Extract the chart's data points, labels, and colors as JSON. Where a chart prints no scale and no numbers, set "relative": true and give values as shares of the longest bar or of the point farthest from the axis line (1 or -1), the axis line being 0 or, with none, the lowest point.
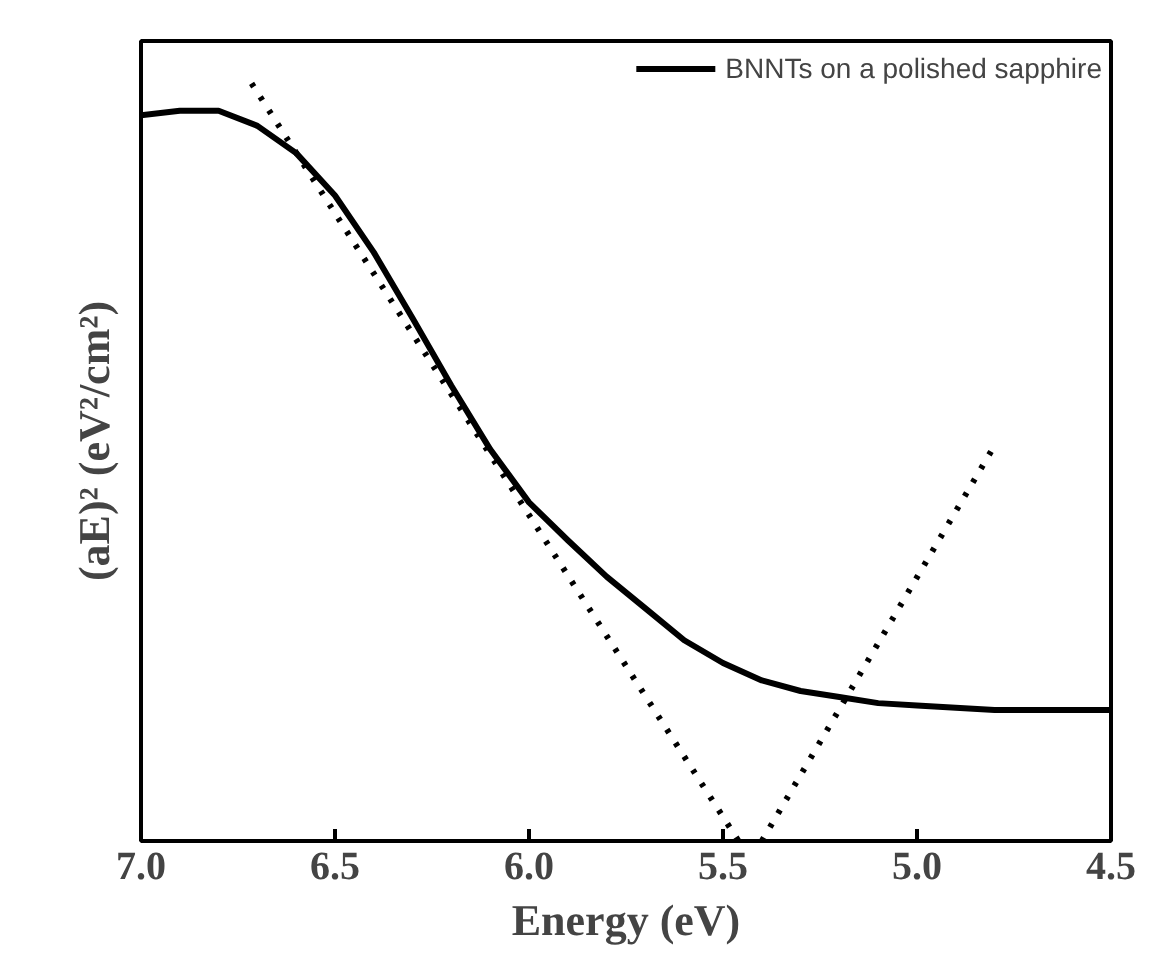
{
  "chart_data": {
    "type": "line",
    "relative": true,
    "xlabel": "Energy (eV)",
    "ylabel": "(aE)² (eV²/cm²)",
    "xlim": [
      7.0,
      4.5
    ],
    "xticks": [
      {
        "value": 7.0,
        "label": "7.0"
      },
      {
        "value": 6.5,
        "label": "6.5"
      },
      {
        "value": 6.0,
        "label": "6.0"
      },
      {
        "value": 5.5,
        "label": "5.5"
      },
      {
        "value": 5.0,
        "label": "5.0"
      },
      {
        "value": 4.5,
        "label": "4.5"
      }
    ],
    "grid": false,
    "legend": "top right",
    "tick_labels": "x",
    "series": [
      {
        "name": "BNNTs on a polished sapphire",
        "color": "#000000",
        "line_style": "solid",
        "x": [
          7.0,
          6.9,
          6.8,
          6.7,
          6.6,
          6.5,
          6.4,
          6.3,
          6.2,
          6.1,
          6.0,
          5.9,
          5.8,
          5.7,
          5.6,
          5.5,
          5.4,
          5.3,
          5.2,
          5.1,
          5.0,
          4.8,
          4.5
        ],
        "values": [
          0.958,
          0.964,
          0.964,
          0.944,
          0.908,
          0.852,
          0.777,
          0.69,
          0.601,
          0.517,
          0.447,
          0.397,
          0.349,
          0.307,
          0.265,
          0.235,
          0.212,
          0.198,
          0.19,
          0.182,
          0.179,
          0.173,
          0.173
        ]
      },
      {
        "color": "#000000",
        "line_style": "dotted",
        "x": [
          6.715,
          5.46
        ],
        "values": [
          1.0,
          0.0
        ]
      },
      {
        "color": "#000000",
        "line_style": "dotted",
        "x": [
          5.4,
          4.806
        ],
        "values": [
          0.0,
          0.517
        ]
      }
    ]
  }
}
